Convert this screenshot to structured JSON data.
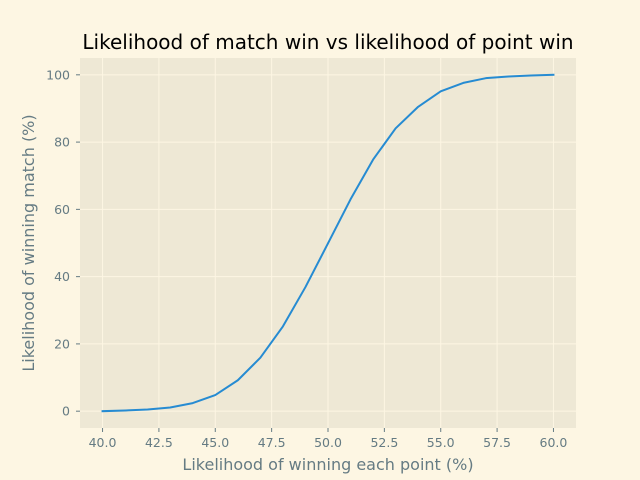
{
  "chart_data": {
    "type": "line",
    "title": "Likelihood of match win vs likelihood of point win",
    "xlabel": "Likelihood of winning each point (%)",
    "ylabel": "Likelihood of winning match (%)",
    "xlim": [
      39.0,
      61.0
    ],
    "ylim": [
      -5.0,
      105.0
    ],
    "xticks": [
      40.0,
      42.5,
      45.0,
      47.5,
      50.0,
      52.5,
      55.0,
      57.5,
      60.0
    ],
    "xtick_labels": [
      "40.0",
      "42.5",
      "45.0",
      "47.5",
      "50.0",
      "52.5",
      "55.0",
      "57.5",
      "60.0"
    ],
    "yticks": [
      0,
      20,
      40,
      60,
      80,
      100
    ],
    "ytick_labels": [
      "0",
      "20",
      "40",
      "60",
      "80",
      "100"
    ],
    "grid": true,
    "series": [
      {
        "color": "#268bd2",
        "x": [
          40,
          41,
          42,
          43,
          44,
          45,
          46,
          47,
          48,
          49,
          50,
          51,
          52,
          53,
          54,
          55,
          56,
          57,
          58,
          59,
          60
        ],
        "y": [
          0.0,
          0.2,
          0.5,
          1.1,
          2.4,
          4.8,
          9.2,
          15.9,
          25.2,
          36.9,
          49.9,
          63.0,
          74.8,
          84.1,
          90.5,
          95.1,
          97.6,
          99.0,
          99.5,
          99.8,
          100.0
        ]
      }
    ]
  },
  "colors": {
    "figure_bg": "#fdf6e3",
    "plot_bg": "#eee8d5",
    "grid": "#fdf6e3",
    "tick_text": "#657b83",
    "title_text": "#000000"
  }
}
